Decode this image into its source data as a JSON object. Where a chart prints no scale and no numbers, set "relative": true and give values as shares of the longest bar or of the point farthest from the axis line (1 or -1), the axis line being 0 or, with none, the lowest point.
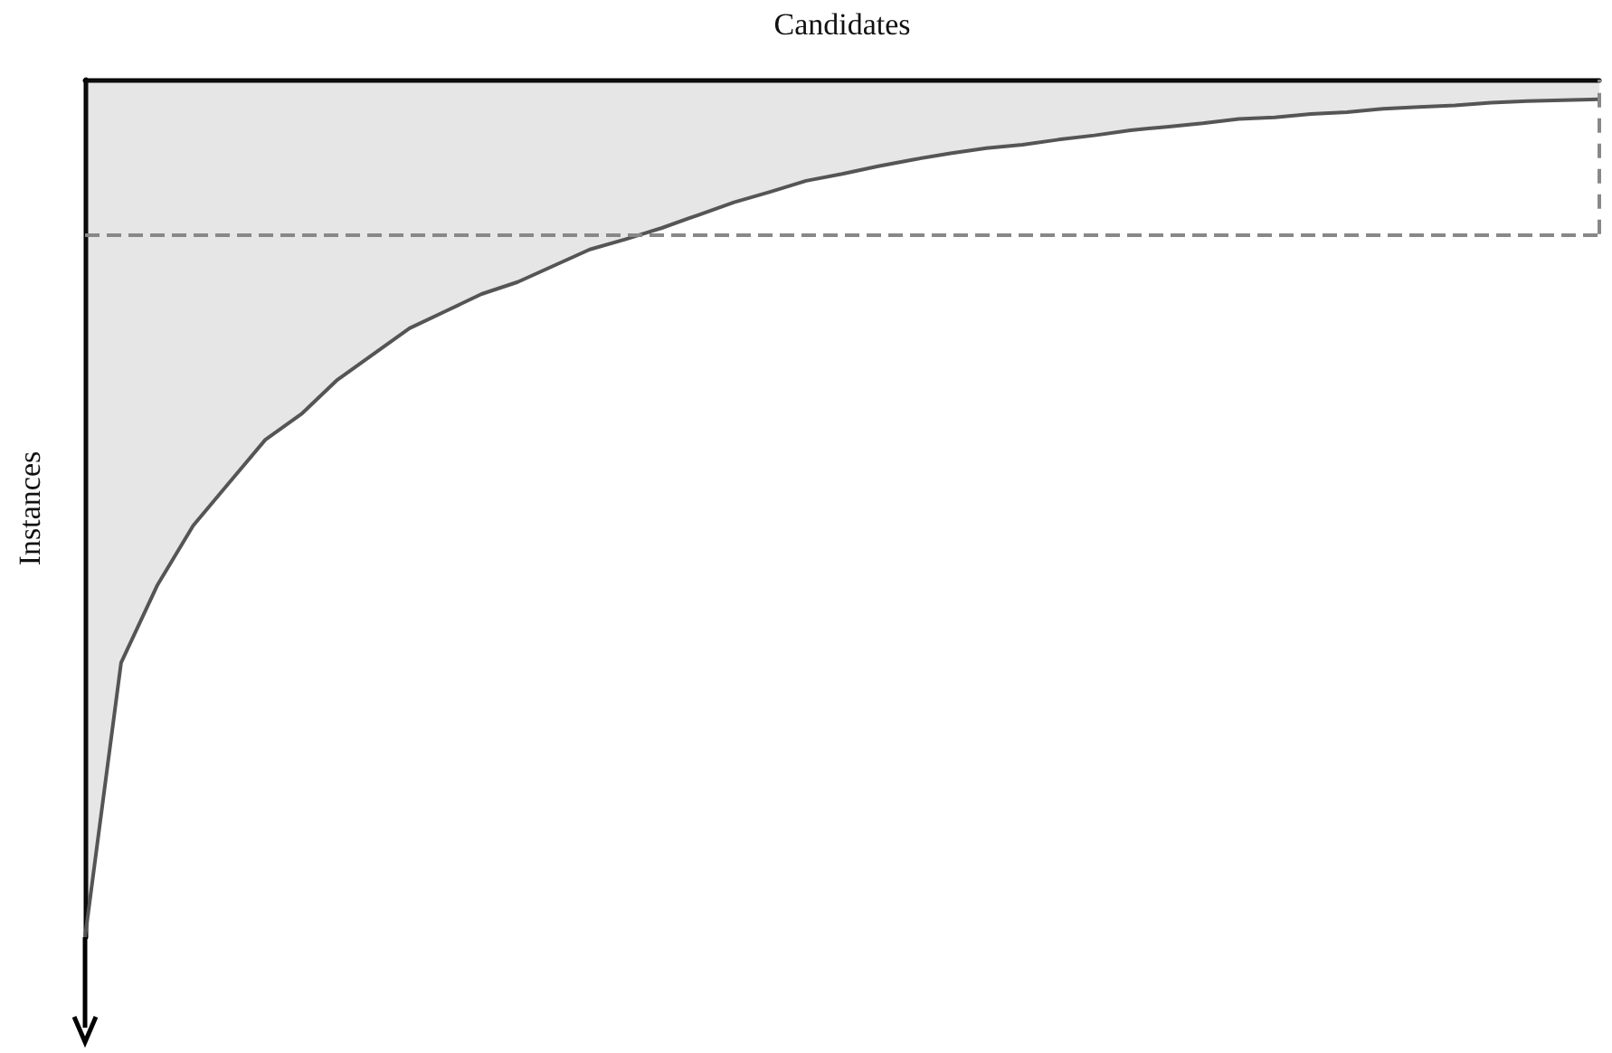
{
  "chart_data": {
    "type": "area",
    "xlabel": "Candidates",
    "ylabel": "Instances",
    "relative": true,
    "marker": "none",
    "grid": false,
    "categories": [
      null,
      null,
      null,
      null,
      null,
      null,
      null,
      null,
      null,
      null,
      null,
      null,
      null,
      null,
      null,
      null,
      null,
      null,
      null,
      null,
      null,
      null,
      null,
      null,
      null,
      null,
      null,
      null,
      null,
      null,
      null,
      null,
      null,
      null,
      null,
      null,
      null,
      null,
      null,
      null,
      null,
      null,
      null
    ],
    "series": [
      {
        "color": "#555555",
        "values": [
          -1,
          -0.68,
          -0.59,
          -0.52,
          -0.47,
          -0.42,
          -0.39,
          -0.35,
          -0.32,
          -0.29,
          -0.27,
          -0.25,
          -0.236,
          -0.217,
          -0.198,
          -0.186,
          -0.173,
          -0.158,
          -0.143,
          -0.131,
          -0.118,
          -0.11,
          -0.101,
          -0.093,
          -0.086,
          -0.08,
          -0.076,
          -0.07,
          -0.065,
          -0.059,
          -0.055,
          -0.051,
          -0.046,
          -0.044,
          -0.04,
          -0.038,
          -0.034,
          -0.032,
          -0.03,
          -0.027,
          -0.025,
          -0.024,
          -0.023
        ]
      }
    ],
    "ref_lines": [
      {
        "axis": "y",
        "value": -0.18,
        "color": "#888888",
        "line_style": "dashed"
      }
    ]
  }
}
